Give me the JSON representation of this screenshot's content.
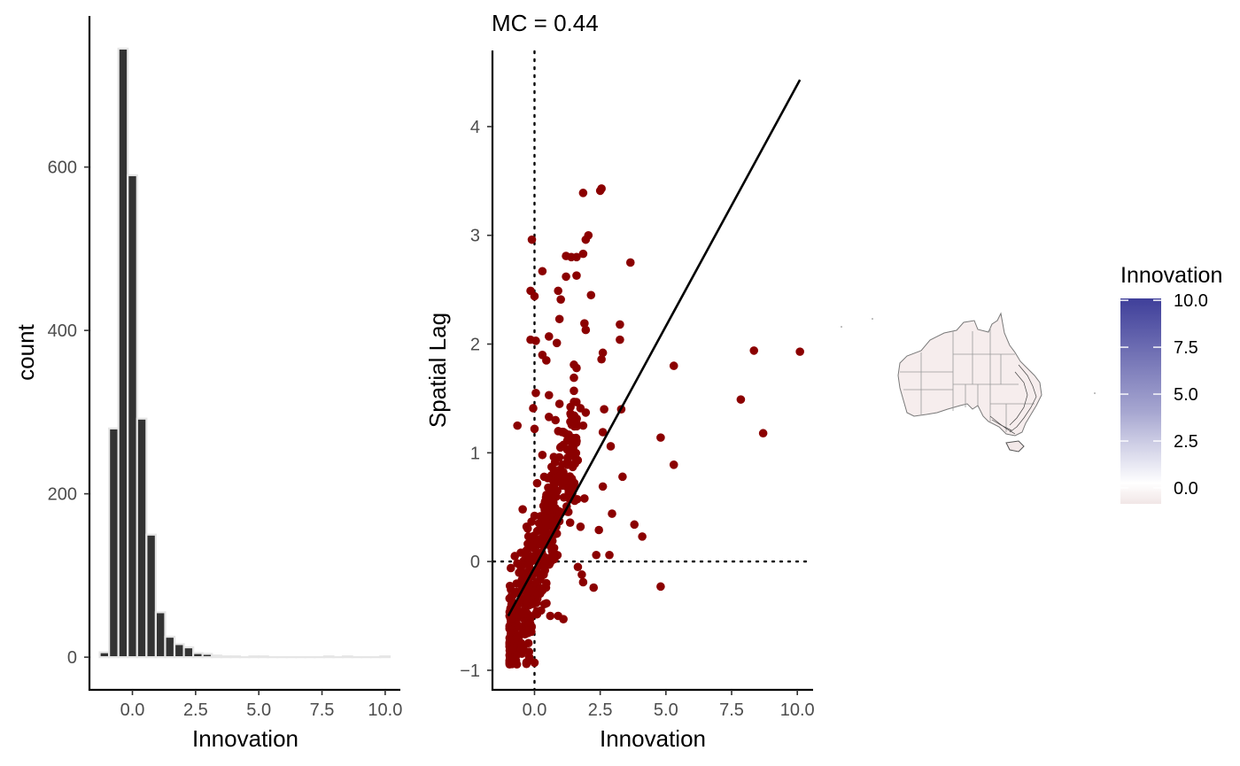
{
  "colors": {
    "bar_fill": "#333333",
    "bar_outline": "#e6e6e6",
    "point": "#8b0000",
    "line": "#000000",
    "legend_high": "#3f3f9a",
    "legend_mid": "#ffffff",
    "legend_low": "#f1e6e6"
  },
  "chart_data": [
    {
      "type": "bar",
      "subtype": "histogram",
      "xlabel": "Innovation",
      "ylabel": "count",
      "xlim": [
        -1.7,
        10.6
      ],
      "ylim": [
        -40,
        785
      ],
      "x_ticks": [
        0,
        2.5,
        5,
        7.5,
        10
      ],
      "x_tick_labels": [
        "0.0",
        "2.5",
        "5.0",
        "7.5",
        "10.0"
      ],
      "y_ticks": [
        0,
        200,
        400,
        600
      ],
      "y_tick_labels": [
        "0",
        "200",
        "400",
        "600"
      ],
      "bin_width": 0.37,
      "bin_centers": [
        -1.11,
        -0.74,
        -0.37,
        0.0,
        0.37,
        0.74,
        1.11,
        1.48,
        1.85,
        2.22,
        2.59,
        2.96,
        3.33,
        3.7,
        4.07,
        4.44,
        4.81,
        5.18,
        5.55,
        5.92,
        6.29,
        6.66,
        7.03,
        7.4,
        7.77,
        8.14,
        8.51,
        8.88,
        9.25,
        9.62,
        9.99
      ],
      "values": [
        6,
        280,
        745,
        590,
        292,
        150,
        55,
        25,
        16,
        12,
        5,
        4,
        2,
        1,
        1,
        0,
        1,
        1,
        0,
        0,
        0,
        0,
        0,
        0,
        1,
        0,
        1,
        0,
        0,
        0,
        1
      ],
      "grid": false
    },
    {
      "type": "scatter",
      "title": "MC = 0.44",
      "xlabel": "Innovation",
      "ylabel": "Spatial Lag",
      "xlim": [
        -1.6,
        10.6
      ],
      "ylim": [
        -1.18,
        4.7
      ],
      "x_ticks": [
        0,
        2.5,
        5,
        7.5,
        10
      ],
      "x_tick_labels": [
        "0.0",
        "2.5",
        "5.0",
        "7.5",
        "10.0"
      ],
      "y_ticks": [
        -1,
        0,
        1,
        2,
        3,
        4
      ],
      "y_tick_labels": [
        "−1",
        "0",
        "1",
        "2",
        "3",
        "4"
      ],
      "reference_lines": {
        "vertical_x": 0,
        "horizontal_y": 0,
        "style": "dotted"
      },
      "fit_line": {
        "x": [
          -1.0,
          10.1
        ],
        "y": [
          -0.5,
          4.43
        ]
      },
      "points": [
        [
          2.55,
          3.43
        ],
        [
          2.5,
          3.41
        ],
        [
          1.85,
          3.39
        ],
        [
          2.05,
          3.0
        ],
        [
          1.95,
          2.96
        ],
        [
          -0.1,
          2.96
        ],
        [
          3.65,
          2.75
        ],
        [
          1.4,
          2.8
        ],
        [
          1.6,
          2.8
        ],
        [
          1.2,
          2.81
        ],
        [
          1.85,
          2.83
        ],
        [
          0.3,
          2.67
        ],
        [
          1.2,
          2.62
        ],
        [
          1.6,
          2.63
        ],
        [
          -0.15,
          2.49
        ],
        [
          0.9,
          2.49
        ],
        [
          1.0,
          2.41
        ],
        [
          0.0,
          2.44
        ],
        [
          2.15,
          2.45
        ],
        [
          0.95,
          2.23
        ],
        [
          1.9,
          2.19
        ],
        [
          3.25,
          2.18
        ],
        [
          1.95,
          2.13
        ],
        [
          0.55,
          2.07
        ],
        [
          -0.15,
          2.04
        ],
        [
          0.05,
          2.03
        ],
        [
          3.25,
          2.04
        ],
        [
          0.85,
          2.01
        ],
        [
          0.45,
          1.85
        ],
        [
          0.3,
          1.9
        ],
        [
          1.5,
          1.81
        ],
        [
          1.6,
          1.78
        ],
        [
          2.6,
          1.92
        ],
        [
          2.55,
          1.86
        ],
        [
          1.5,
          1.69
        ],
        [
          0.05,
          1.55
        ],
        [
          0.55,
          1.53
        ],
        [
          1.5,
          1.57
        ],
        [
          1.75,
          1.41
        ],
        [
          1.95,
          1.37
        ],
        [
          3.3,
          1.4
        ],
        [
          2.65,
          1.4
        ],
        [
          0.8,
          1.3
        ],
        [
          -0.05,
          1.41
        ],
        [
          0.55,
          1.33
        ],
        [
          0.95,
          1.45
        ],
        [
          2.6,
          1.19
        ],
        [
          -0.65,
          1.25
        ],
        [
          2.9,
          1.06
        ],
        [
          0.0,
          1.22
        ],
        [
          1.85,
          1.25
        ],
        [
          0.8,
          0.95
        ],
        [
          3.35,
          0.78
        ],
        [
          2.6,
          0.69
        ],
        [
          1.5,
          0.71
        ],
        [
          4.8,
          1.14
        ],
        [
          5.3,
          0.89
        ],
        [
          7.85,
          1.49
        ],
        [
          8.35,
          1.94
        ],
        [
          10.1,
          1.93
        ],
        [
          5.3,
          1.8
        ],
        [
          8.7,
          1.18
        ],
        [
          3.8,
          0.34
        ],
        [
          4.1,
          0.23
        ],
        [
          2.95,
          0.44
        ],
        [
          1.9,
          0.58
        ],
        [
          2.45,
          0.29
        ],
        [
          2.85,
          0.06
        ],
        [
          1.75,
          0.32
        ],
        [
          2.35,
          0.06
        ],
        [
          1.8,
          -0.12
        ],
        [
          1.65,
          -0.05
        ],
        [
          4.8,
          -0.23
        ],
        [
          2.25,
          -0.24
        ],
        [
          1.85,
          -0.19
        ],
        [
          0.9,
          -0.5
        ],
        [
          1.1,
          -0.53
        ],
        [
          0.6,
          -0.5
        ],
        [
          -0.75,
          0.05
        ],
        [
          -0.8,
          -0.3
        ],
        [
          -0.9,
          -0.06
        ],
        [
          -0.5,
          -0.8
        ],
        [
          -0.2,
          -0.88
        ],
        [
          0.0,
          -0.93
        ],
        [
          -0.65,
          -0.71
        ],
        [
          0.35,
          -0.12
        ],
        [
          0.4,
          0.55
        ],
        [
          0.65,
          0.21
        ],
        [
          -0.3,
          0.32
        ],
        [
          0.1,
          0.72
        ],
        [
          0.3,
          0.98
        ],
        [
          -0.45,
          0.48
        ],
        [
          0.0,
          0.42
        ],
        [
          0.3,
          0.3
        ],
        [
          -0.5,
          -0.22
        ],
        [
          0.25,
          -0.45
        ]
      ],
      "grid": false
    },
    {
      "type": "heatmap",
      "subtype": "choropleth-map",
      "legend_title": "Innovation",
      "legend_placement": "right",
      "legend_ticks": [
        10,
        7.5,
        5,
        2.5,
        0
      ],
      "legend_tick_labels": [
        "10.0",
        "7.5",
        "5.0",
        "2.5",
        "0.0"
      ],
      "legend_range": [
        -0.85,
        10.1
      ]
    }
  ]
}
